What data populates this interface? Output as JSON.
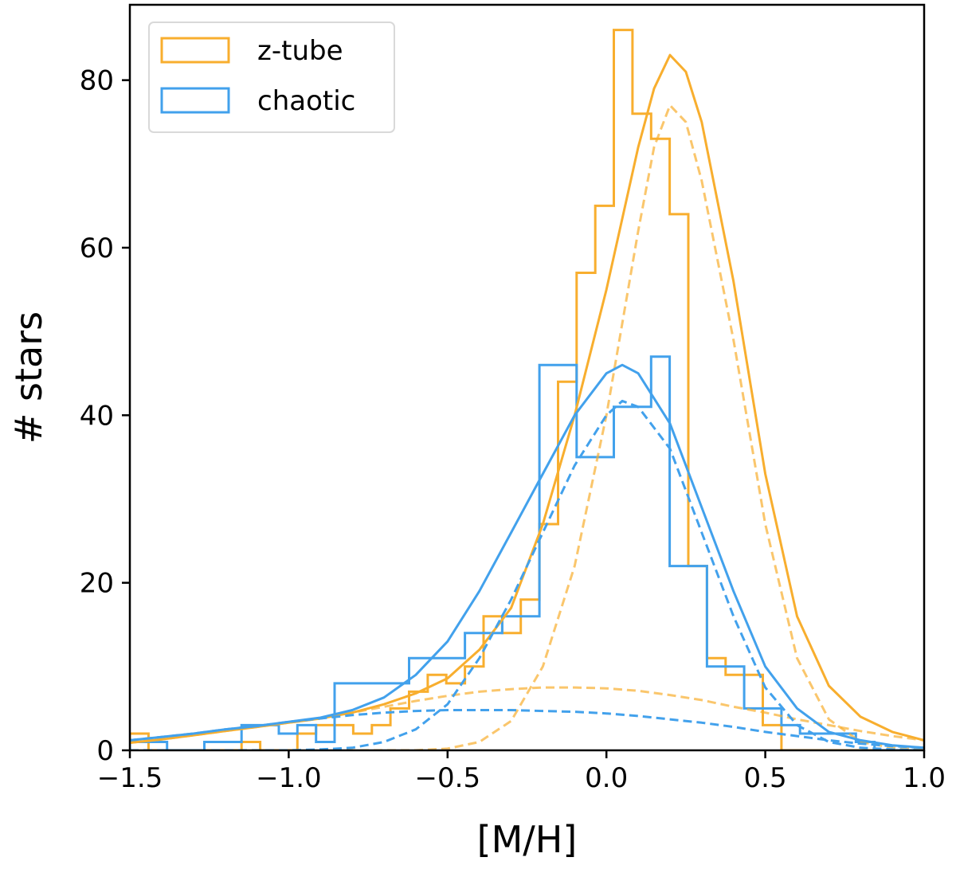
{
  "chart_data": {
    "type": "histogram",
    "xlabel": "[M/H]",
    "ylabel": "# stars",
    "xlim": [
      -1.5,
      1.0
    ],
    "ylim": [
      0,
      89
    ],
    "x_ticks": [
      -1.5,
      -1.0,
      -0.5,
      0.0,
      0.5,
      1.0
    ],
    "x_tick_labels": [
      "−1.5",
      "−1.0",
      "−0.5",
      "0.0",
      "0.5",
      "1.0"
    ],
    "y_ticks": [
      0,
      20,
      40,
      60,
      80
    ],
    "y_tick_labels": [
      "0",
      "20",
      "40",
      "60",
      "80"
    ],
    "grid": false,
    "legend_position": "top-left",
    "colors": {
      "z_tube": "#F8AE2E",
      "chaotic": "#42A1EC"
    },
    "histograms": [
      {
        "name": "z-tube",
        "color": "#F8AE2E",
        "bin_edges": [
          -1.5,
          -1.4414,
          -1.3828,
          -1.3242,
          -1.2656,
          -1.207,
          -1.1484,
          -1.0898,
          -1.0312,
          -0.9727,
          -0.9141,
          -0.8555,
          -0.7969,
          -0.7383,
          -0.6797,
          -0.6211,
          -0.5625,
          -0.5039,
          -0.4453,
          -0.3867,
          -0.3281,
          -0.2695,
          -0.2109,
          -0.1523,
          -0.0938,
          -0.0352,
          0.0234,
          0.082,
          0.1406,
          0.1992,
          0.2578,
          0.3164,
          0.375,
          0.4336,
          0.4922,
          0.5508,
          0.6094,
          0.668,
          0.7266,
          0.7852,
          0.8438,
          0.9023,
          0.9609,
          1.0
        ],
        "counts": [
          2,
          0,
          0,
          0,
          0,
          0,
          1,
          0,
          0,
          2,
          3,
          3,
          2,
          3,
          5,
          7,
          9,
          8,
          10,
          16,
          14,
          18,
          27,
          44,
          57,
          65,
          86,
          76,
          73,
          64,
          22,
          11,
          9,
          9,
          3,
          0,
          0,
          0,
          0,
          0,
          0,
          0,
          0
        ]
      },
      {
        "name": "chaotic",
        "color": "#42A1EC",
        "bin_edges": [
          -1.5,
          -1.3828,
          -1.2656,
          -1.1484,
          -1.0312,
          -0.9727,
          -0.9141,
          -0.8555,
          -0.6211,
          -0.5625,
          -0.5039,
          -0.4453,
          -0.3867,
          -0.3281,
          -0.2109,
          -0.0938,
          0.0234,
          0.082,
          0.1406,
          0.1992,
          0.3164,
          0.4336,
          0.4922,
          0.5508,
          0.6094,
          0.668,
          0.7266,
          0.7852,
          0.8438,
          0.9023,
          0.9609,
          1.0
        ],
        "counts": [
          1,
          0,
          1,
          3,
          2,
          3,
          1,
          8,
          11,
          11,
          11,
          14,
          14,
          16,
          46,
          35,
          41,
          41,
          47,
          22,
          10,
          5,
          5,
          3,
          2,
          2,
          2,
          1,
          0,
          0,
          0
        ]
      }
    ],
    "fit_curves": [
      {
        "group": "z-tube",
        "style": "solid",
        "color": "#F8AE2E",
        "x": [
          -1.5,
          -1.4,
          -1.3,
          -1.2,
          -1.1,
          -1.0,
          -0.9,
          -0.8,
          -0.7,
          -0.6,
          -0.5,
          -0.4,
          -0.3,
          -0.2,
          -0.1,
          0.0,
          0.1,
          0.15,
          0.2,
          0.25,
          0.3,
          0.4,
          0.5,
          0.6,
          0.7,
          0.8,
          0.9,
          1.0
        ],
        "y": [
          0.9,
          1.3,
          1.8,
          2.3,
          2.8,
          3.3,
          3.8,
          4.5,
          5.5,
          6.8,
          8.6,
          12.0,
          17.0,
          27.0,
          40.0,
          55.0,
          72.0,
          79.0,
          83.0,
          81.0,
          75.0,
          56.0,
          33.0,
          16.0,
          7.7,
          4.0,
          2.2,
          1.2
        ]
      },
      {
        "group": "z-tube",
        "style": "dashed",
        "color": "#F8AE2E",
        "x": [
          -1.5,
          -1.4,
          -1.3,
          -1.2,
          -1.1,
          -1.0,
          -0.9,
          -0.8,
          -0.7,
          -0.6,
          -0.5,
          -0.4,
          -0.3,
          -0.2,
          -0.1,
          0.0,
          0.1,
          0.15,
          0.2,
          0.25,
          0.3,
          0.4,
          0.5,
          0.6,
          0.7,
          0.8,
          0.9,
          1.0
        ],
        "y": [
          0.0,
          0.0,
          0.0,
          0.0,
          0.0,
          0.0,
          0.0,
          0.0,
          0.0,
          0.0,
          0.2,
          1.0,
          3.5,
          10.0,
          22.0,
          40.0,
          62.0,
          72.0,
          77.0,
          75.0,
          68.0,
          49.0,
          27.0,
          11.0,
          3.7,
          1.0,
          0.3,
          0.1
        ]
      },
      {
        "group": "z-tube",
        "style": "dashed-wide",
        "color": "#F8AE2E",
        "x": [
          -1.5,
          -1.4,
          -1.3,
          -1.2,
          -1.1,
          -1.0,
          -0.9,
          -0.8,
          -0.7,
          -0.6,
          -0.5,
          -0.4,
          -0.3,
          -0.2,
          -0.1,
          0.0,
          0.1,
          0.2,
          0.3,
          0.4,
          0.5,
          0.6,
          0.7,
          0.8,
          0.9,
          1.0
        ],
        "y": [
          0.9,
          1.3,
          1.8,
          2.3,
          2.8,
          3.3,
          3.8,
          4.5,
          5.2,
          5.9,
          6.5,
          7.0,
          7.3,
          7.5,
          7.5,
          7.4,
          7.1,
          6.6,
          6.0,
          5.2,
          4.5,
          3.7,
          3.0,
          2.3,
          1.7,
          1.2
        ]
      },
      {
        "group": "chaotic",
        "style": "solid",
        "color": "#42A1EC",
        "x": [
          -1.5,
          -1.4,
          -1.3,
          -1.2,
          -1.1,
          -1.0,
          -0.9,
          -0.8,
          -0.7,
          -0.6,
          -0.5,
          -0.4,
          -0.3,
          -0.2,
          -0.1,
          0.0,
          0.05,
          0.1,
          0.2,
          0.3,
          0.4,
          0.5,
          0.6,
          0.7,
          0.8,
          0.9,
          1.0
        ],
        "y": [
          1.2,
          1.6,
          2.0,
          2.5,
          2.9,
          3.4,
          3.9,
          4.8,
          6.3,
          9.0,
          13.0,
          19.0,
          26.0,
          33.0,
          40.0,
          45.0,
          46.0,
          45.0,
          39.0,
          29.0,
          19.0,
          10.0,
          5.0,
          2.2,
          1.2,
          0.6,
          0.3
        ]
      },
      {
        "group": "chaotic",
        "style": "dashed",
        "color": "#42A1EC",
        "x": [
          -1.5,
          -1.4,
          -1.3,
          -1.2,
          -1.1,
          -1.0,
          -0.9,
          -0.8,
          -0.7,
          -0.6,
          -0.5,
          -0.4,
          -0.3,
          -0.2,
          -0.1,
          0.0,
          0.05,
          0.1,
          0.2,
          0.3,
          0.4,
          0.5,
          0.6,
          0.7,
          0.8,
          0.9,
          1.0
        ],
        "y": [
          0.0,
          0.0,
          0.0,
          0.0,
          0.0,
          0.0,
          0.1,
          0.3,
          1.0,
          2.5,
          5.5,
          11.0,
          18.0,
          26.0,
          34.0,
          40.0,
          41.7,
          41.0,
          36.0,
          26.0,
          16.0,
          7.5,
          3.0,
          1.0,
          0.3,
          0.1,
          0.0
        ]
      },
      {
        "group": "chaotic",
        "style": "dashed-wide",
        "color": "#42A1EC",
        "x": [
          -1.5,
          -1.4,
          -1.3,
          -1.2,
          -1.1,
          -1.0,
          -0.9,
          -0.8,
          -0.7,
          -0.6,
          -0.5,
          -0.4,
          -0.3,
          -0.2,
          -0.1,
          0.0,
          0.1,
          0.2,
          0.3,
          0.4,
          0.5,
          0.6,
          0.7,
          0.8,
          0.9,
          1.0
        ],
        "y": [
          1.2,
          1.6,
          2.0,
          2.5,
          2.9,
          3.4,
          3.8,
          4.2,
          4.5,
          4.7,
          4.8,
          4.8,
          4.8,
          4.7,
          4.6,
          4.4,
          4.1,
          3.7,
          3.3,
          2.8,
          2.2,
          1.7,
          1.2,
          0.8,
          0.5,
          0.3
        ]
      }
    ],
    "legend": [
      {
        "label": "z-tube",
        "color": "#F8AE2E"
      },
      {
        "label": "chaotic",
        "color": "#42A1EC"
      }
    ]
  }
}
